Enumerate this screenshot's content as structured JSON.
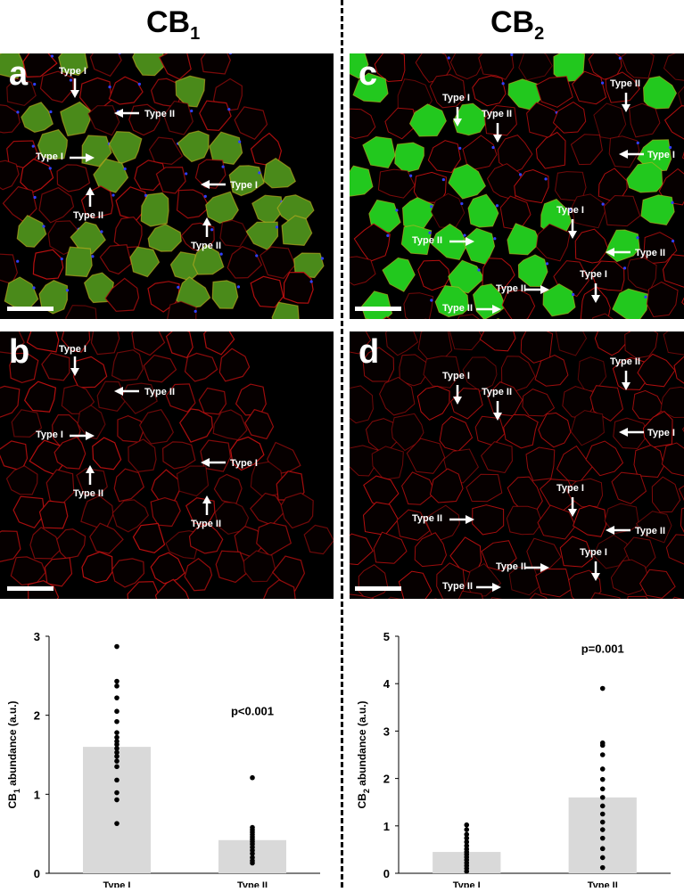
{
  "columns": {
    "left": {
      "title": "CB",
      "subscript": "1"
    },
    "right": {
      "title": "CB",
      "subscript": "2"
    }
  },
  "panels": {
    "a": {
      "letter": "a",
      "labels": [
        "Type I",
        "Type II",
        "Type I",
        "Type I",
        "Type II",
        "Type II"
      ]
    },
    "b": {
      "letter": "b",
      "labels": [
        "Type I",
        "Type II",
        "Type I",
        "Type I",
        "Type II",
        "Type II"
      ]
    },
    "c": {
      "letter": "c",
      "labels": [
        "Type I",
        "Type II",
        "Type II",
        "Type I",
        "Type I",
        "Type II",
        "Type II",
        "Type I",
        "Type II",
        "Type II"
      ]
    },
    "d": {
      "letter": "d",
      "labels": [
        "Type I",
        "Type II",
        "Type II",
        "Type I",
        "Type I",
        "Type II",
        "Type II",
        "Type I",
        "Type II",
        "Type II"
      ]
    }
  },
  "chart_data": [
    {
      "type": "bar",
      "categories": [
        "Type I",
        "Type II"
      ],
      "values": [
        1.6,
        0.42
      ],
      "points": [
        [
          2.87,
          2.43,
          2.37,
          2.22,
          2.05,
          1.92,
          1.78,
          1.72,
          1.67,
          1.63,
          1.58,
          1.53,
          1.48,
          1.42,
          1.35,
          1.18,
          1.02,
          0.93,
          0.63
        ],
        [
          1.21,
          0.58,
          0.55,
          0.52,
          0.49,
          0.46,
          0.43,
          0.4,
          0.37,
          0.33,
          0.29,
          0.25,
          0.2,
          0.16,
          0.13
        ]
      ],
      "ylabel_main": "CB",
      "ylabel_sub": "1",
      "ylabel_rest": " abundance (a.u.)",
      "ylim": [
        0,
        3
      ],
      "yticks": [
        "0",
        "1",
        "2",
        "3"
      ],
      "annotation": "p<0.001",
      "annotation_category": "Type II",
      "bar_color": "#d9d9d9",
      "point_color": "#000000"
    },
    {
      "type": "bar",
      "categories": [
        "Type I",
        "Type II"
      ],
      "values": [
        0.45,
        1.6
      ],
      "points": [
        [
          1.02,
          0.92,
          0.82,
          0.74,
          0.66,
          0.58,
          0.51,
          0.45,
          0.4,
          0.34,
          0.28,
          0.22,
          0.16,
          0.1,
          0.04
        ],
        [
          3.9,
          2.75,
          2.7,
          2.5,
          2.2,
          1.98,
          1.78,
          1.6,
          1.42,
          1.25,
          1.08,
          0.92,
          0.74,
          0.52,
          0.33,
          0.12
        ]
      ],
      "ylabel_main": "CB",
      "ylabel_sub": "2",
      "ylabel_rest": " abundance (a.u.)",
      "ylim": [
        0,
        5
      ],
      "yticks": [
        "0",
        "1",
        "2",
        "3",
        "4",
        "5"
      ],
      "annotation": "p=0.001",
      "annotation_category": "Type II",
      "bar_color": "#d9d9d9",
      "point_color": "#000000"
    }
  ]
}
